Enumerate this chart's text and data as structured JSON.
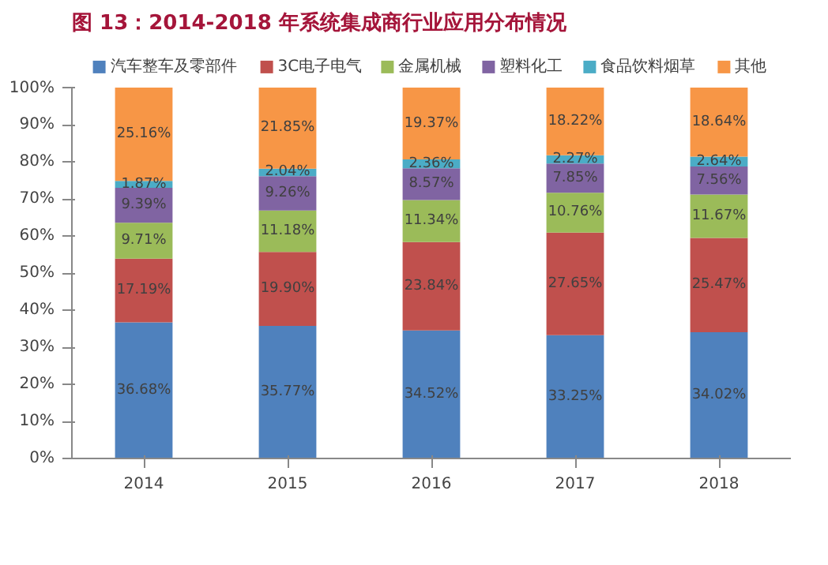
{
  "chart_data": {
    "type": "bar",
    "stacked": true,
    "title": "图 13：2014-2018 年系统集成商行业应用分布情况",
    "categories": [
      "2014",
      "2015",
      "2016",
      "2017",
      "2018"
    ],
    "series": [
      {
        "name": "汽车整车及零部件",
        "color": "#4f81bd",
        "values": [
          36.68,
          35.77,
          34.52,
          33.25,
          34.02
        ],
        "value_labels": [
          "36.68%",
          "35.77%",
          "34.52%",
          "33.25%",
          "34.02%"
        ]
      },
      {
        "name": "3C电子电气",
        "color": "#c0504d",
        "values": [
          17.19,
          19.9,
          23.84,
          27.65,
          25.47
        ],
        "value_labels": [
          "17.19%",
          "19.90%",
          "23.84%",
          "27.65%",
          "25.47%"
        ]
      },
      {
        "name": "金属机械",
        "color": "#9bbb59",
        "values": [
          9.71,
          11.18,
          11.34,
          10.76,
          11.67
        ],
        "value_labels": [
          "9.71%",
          "11.18%",
          "11.34%",
          "10.76%",
          "11.67%"
        ]
      },
      {
        "name": "塑料化工",
        "color": "#8064a2",
        "values": [
          9.39,
          9.26,
          8.57,
          7.85,
          7.56
        ],
        "value_labels": [
          "9.39%",
          "9.26%",
          "8.57%",
          "7.85%",
          "7.56%"
        ]
      },
      {
        "name": "食品饮料烟草",
        "color": "#4bacc6",
        "values": [
          1.87,
          2.04,
          2.36,
          2.27,
          2.64
        ],
        "value_labels": [
          "1.87%",
          "2.04%",
          "2.36%",
          "2.27%",
          "2.64%"
        ]
      },
      {
        "name": "其他",
        "color": "#f79646",
        "values": [
          25.16,
          21.85,
          19.37,
          18.22,
          18.64
        ],
        "value_labels": [
          "25.16%",
          "21.85%",
          "19.37%",
          "18.22%",
          "18.64%"
        ]
      }
    ],
    "ylim": [
      0,
      100
    ],
    "yticks": [
      {
        "value": 0,
        "label": "0%"
      },
      {
        "value": 10,
        "label": "10%"
      },
      {
        "value": 20,
        "label": "20%"
      },
      {
        "value": 30,
        "label": "30%"
      },
      {
        "value": 40,
        "label": "40%"
      },
      {
        "value": 50,
        "label": "50%"
      },
      {
        "value": 60,
        "label": "60%"
      },
      {
        "value": 70,
        "label": "70%"
      },
      {
        "value": 80,
        "label": "80%"
      },
      {
        "value": 90,
        "label": "90%"
      },
      {
        "value": 100,
        "label": "100%"
      }
    ],
    "grid": false,
    "legend": "top"
  }
}
